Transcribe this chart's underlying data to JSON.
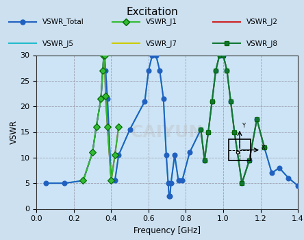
{
  "title": "Excitation",
  "xlabel": "Frequency [GHz]",
  "ylabel": "VSWR",
  "xlim": [
    0.0,
    1.4
  ],
  "ylim": [
    0,
    30
  ],
  "xticks": [
    0.0,
    0.2,
    0.4,
    0.6,
    0.8,
    1.0,
    1.2,
    1.4
  ],
  "yticks": [
    0,
    5,
    10,
    15,
    20,
    25,
    30
  ],
  "bg_color": "#ddeeff",
  "legend_order": [
    "VSWR_Total",
    "VSWR_J1",
    "VSWR_J2",
    "VSWR_J5",
    "VSWR_J7",
    "VSWR_J8"
  ],
  "series": {
    "VSWR_Total": {
      "color": "#2060c0",
      "linewidth": 1.4,
      "marker": "o",
      "markersize": 5,
      "zorder": 5,
      "x": [
        0.05,
        0.15,
        0.25,
        0.3,
        0.32,
        0.345,
        0.355,
        0.36,
        0.365,
        0.37,
        0.38,
        0.4,
        0.42,
        0.44,
        0.5,
        0.58,
        0.6,
        0.62,
        0.64,
        0.66,
        0.68,
        0.695,
        0.705,
        0.71,
        0.715,
        0.72,
        0.74,
        0.76,
        0.78,
        0.82,
        0.88,
        0.9,
        0.92,
        0.94,
        0.96,
        0.98,
        1.0,
        1.02,
        1.04,
        1.06,
        1.1,
        1.14,
        1.18,
        1.22,
        1.26,
        1.3,
        1.35,
        1.4
      ],
      "y": [
        5.0,
        5.0,
        5.5,
        11.0,
        16.0,
        21.5,
        27.0,
        30.0,
        30.0,
        27.0,
        21.5,
        5.5,
        5.5,
        10.5,
        15.5,
        21.0,
        27.0,
        30.0,
        30.0,
        27.0,
        21.5,
        10.5,
        5.0,
        2.5,
        2.5,
        5.0,
        10.5,
        5.5,
        5.5,
        11.0,
        15.5,
        9.5,
        15.0,
        21.0,
        27.0,
        30.0,
        30.0,
        27.0,
        21.0,
        15.0,
        5.0,
        9.5,
        17.5,
        12.0,
        7.0,
        8.0,
        6.0,
        4.5
      ]
    },
    "VSWR_J1": {
      "color": "#33bb33",
      "linewidth": 1.4,
      "marker": "D",
      "markersize": 5,
      "zorder": 6,
      "x": [
        0.25,
        0.3,
        0.32,
        0.345,
        0.355,
        0.36,
        0.365,
        0.37,
        0.38,
        0.4,
        0.42,
        0.44
      ],
      "y": [
        5.5,
        11.0,
        16.0,
        21.5,
        27.0,
        30.0,
        30.0,
        22.0,
        16.0,
        5.5,
        10.5,
        16.0
      ]
    },
    "VSWR_J2": {
      "color": "#cc2222",
      "linewidth": 1.4,
      "marker": null,
      "zorder": 4,
      "x": [
        0.25,
        0.3,
        0.32,
        0.345,
        0.355,
        0.36,
        0.365,
        0.37,
        0.38,
        0.4,
        0.42,
        0.44
      ],
      "y": [
        5.5,
        11.0,
        16.0,
        21.5,
        27.0,
        30.0,
        30.0,
        22.0,
        16.0,
        5.5,
        10.5,
        16.0
      ]
    },
    "VSWR_J5": {
      "color": "#22bbcc",
      "linewidth": 1.4,
      "marker": null,
      "zorder": 3,
      "x": [
        0.05,
        0.15,
        0.25,
        0.3,
        0.32,
        0.345,
        0.355,
        0.36,
        0.365,
        0.37,
        0.38,
        0.4,
        0.42,
        0.44,
        0.5,
        0.58,
        0.6,
        0.62,
        0.64,
        0.66,
        0.68,
        0.695,
        0.705,
        0.71,
        0.715,
        0.72,
        0.74,
        0.76,
        0.78,
        0.82,
        0.88,
        0.9,
        0.92,
        0.94,
        0.96,
        0.98,
        1.0,
        1.02,
        1.04,
        1.06,
        1.1,
        1.14,
        1.18,
        1.22,
        1.26,
        1.3,
        1.35,
        1.4
      ],
      "y": [
        5.0,
        5.0,
        5.5,
        11.0,
        16.0,
        21.5,
        27.0,
        30.0,
        30.0,
        27.0,
        21.5,
        5.5,
        5.5,
        10.5,
        15.5,
        21.0,
        27.0,
        30.0,
        30.0,
        27.0,
        21.5,
        10.5,
        5.0,
        2.5,
        2.5,
        5.0,
        10.5,
        5.5,
        5.5,
        11.0,
        15.5,
        9.5,
        15.0,
        21.0,
        27.0,
        30.0,
        30.0,
        27.0,
        21.0,
        15.0,
        5.0,
        9.5,
        17.5,
        12.0,
        7.0,
        8.0,
        6.0,
        4.5
      ]
    },
    "VSWR_J7": {
      "color": "#cccc00",
      "linewidth": 1.6,
      "marker": null,
      "zorder": 5,
      "x": [
        0.88,
        0.9,
        0.92,
        0.94,
        0.96,
        0.98,
        1.0,
        1.02,
        1.04,
        1.06,
        1.1,
        1.14,
        1.18,
        1.22
      ],
      "y": [
        15.5,
        9.5,
        15.0,
        21.0,
        27.0,
        30.0,
        30.0,
        27.0,
        21.0,
        15.0,
        5.0,
        9.5,
        17.5,
        12.0
      ]
    },
    "VSWR_J8": {
      "color": "#117733",
      "linewidth": 1.4,
      "marker": "s",
      "markersize": 5,
      "zorder": 7,
      "x": [
        0.88,
        0.9,
        0.92,
        0.94,
        0.96,
        0.98,
        1.0,
        1.02,
        1.04,
        1.06,
        1.1,
        1.14,
        1.18,
        1.22
      ],
      "y": [
        15.5,
        9.5,
        15.0,
        21.0,
        27.0,
        30.0,
        30.0,
        27.0,
        21.0,
        15.0,
        5.0,
        9.5,
        17.5,
        12.0
      ]
    }
  }
}
